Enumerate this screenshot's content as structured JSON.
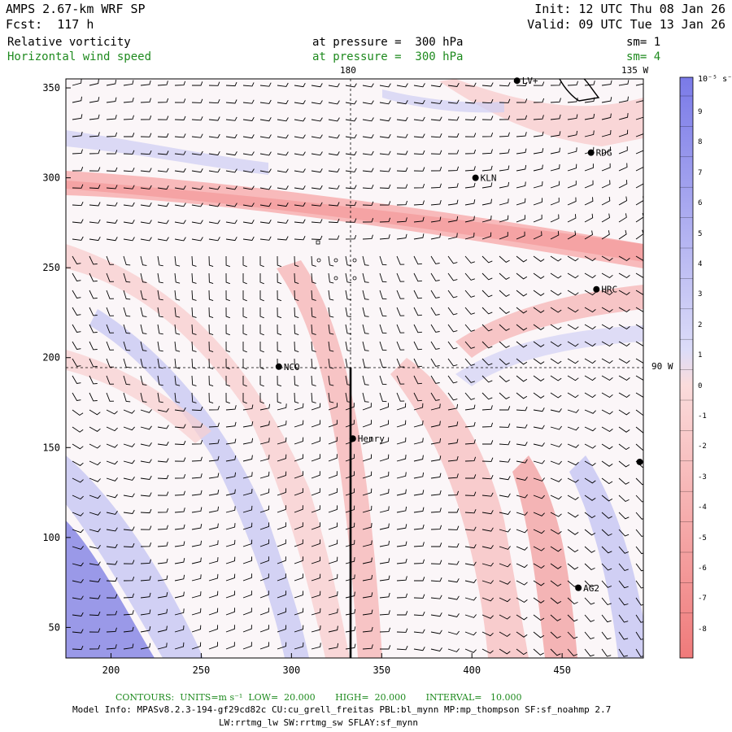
{
  "header": {
    "title": "AMPS 2.67-km WRF SP",
    "forecast": "Fcst:  117 h",
    "init": "Init: 12 UTC Thu 08 Jan 26",
    "valid": "Valid: 09 UTC Tue 13 Jan 26"
  },
  "fields": [
    {
      "name": "Relative vorticity",
      "level": "at pressure =  300 hPa",
      "smooth": "sm= 1",
      "color": "#000000"
    },
    {
      "name": "Horizontal wind speed",
      "level": "at pressure =  300 hPa",
      "smooth": "sm= 4",
      "color": "#1e8a1e"
    }
  ],
  "map": {
    "x_ticks": [
      200,
      250,
      300,
      350,
      400,
      450
    ],
    "y_ticks": [
      50,
      100,
      150,
      200,
      250,
      300,
      350
    ],
    "x_range": [
      175,
      495
    ],
    "y_range": [
      33,
      355
    ],
    "meridian_labels": {
      "top_180": "180",
      "top_135w": "135 W",
      "right_90w": "90 W"
    },
    "stations": [
      {
        "name": "LV+",
        "x": 425,
        "y": 354
      },
      {
        "name": "RDG",
        "x": 466,
        "y": 314
      },
      {
        "name": "KLN",
        "x": 402,
        "y": 300
      },
      {
        "name": "HRC",
        "x": 469,
        "y": 238
      },
      {
        "name": "NCO",
        "x": 293,
        "y": 195
      },
      {
        "name": "Henry",
        "x": 334,
        "y": 155
      },
      {
        "name": "AG2",
        "x": 459,
        "y": 72
      },
      {
        "name": "",
        "x": 493,
        "y": 142
      }
    ]
  },
  "colorbar": {
    "unit": "10⁻⁵ s⁻¹",
    "labels": [
      "9",
      "8",
      "7",
      "6",
      "5",
      "4",
      "3",
      "2",
      "1",
      "0",
      "-1",
      "-2",
      "-3",
      "-4",
      "-5",
      "-6",
      "-7",
      "-8"
    ]
  },
  "footer": {
    "contours": "CONTOURS:  UNITS=m s⁻¹  LOW=  20.000       HIGH=  20.000       INTERVAL=   10.000",
    "model_info": "Model Info: MPASv8.2.3-194-gf29cd82c CU:cu_grell_freitas PBL:bl_mynn MP:mp_thompson SF:sf_noahmp 2.7",
    "model_info2": "LW:rrtmg_lw SW:rrtmg_sw SFLAY:sf_mynn"
  }
}
